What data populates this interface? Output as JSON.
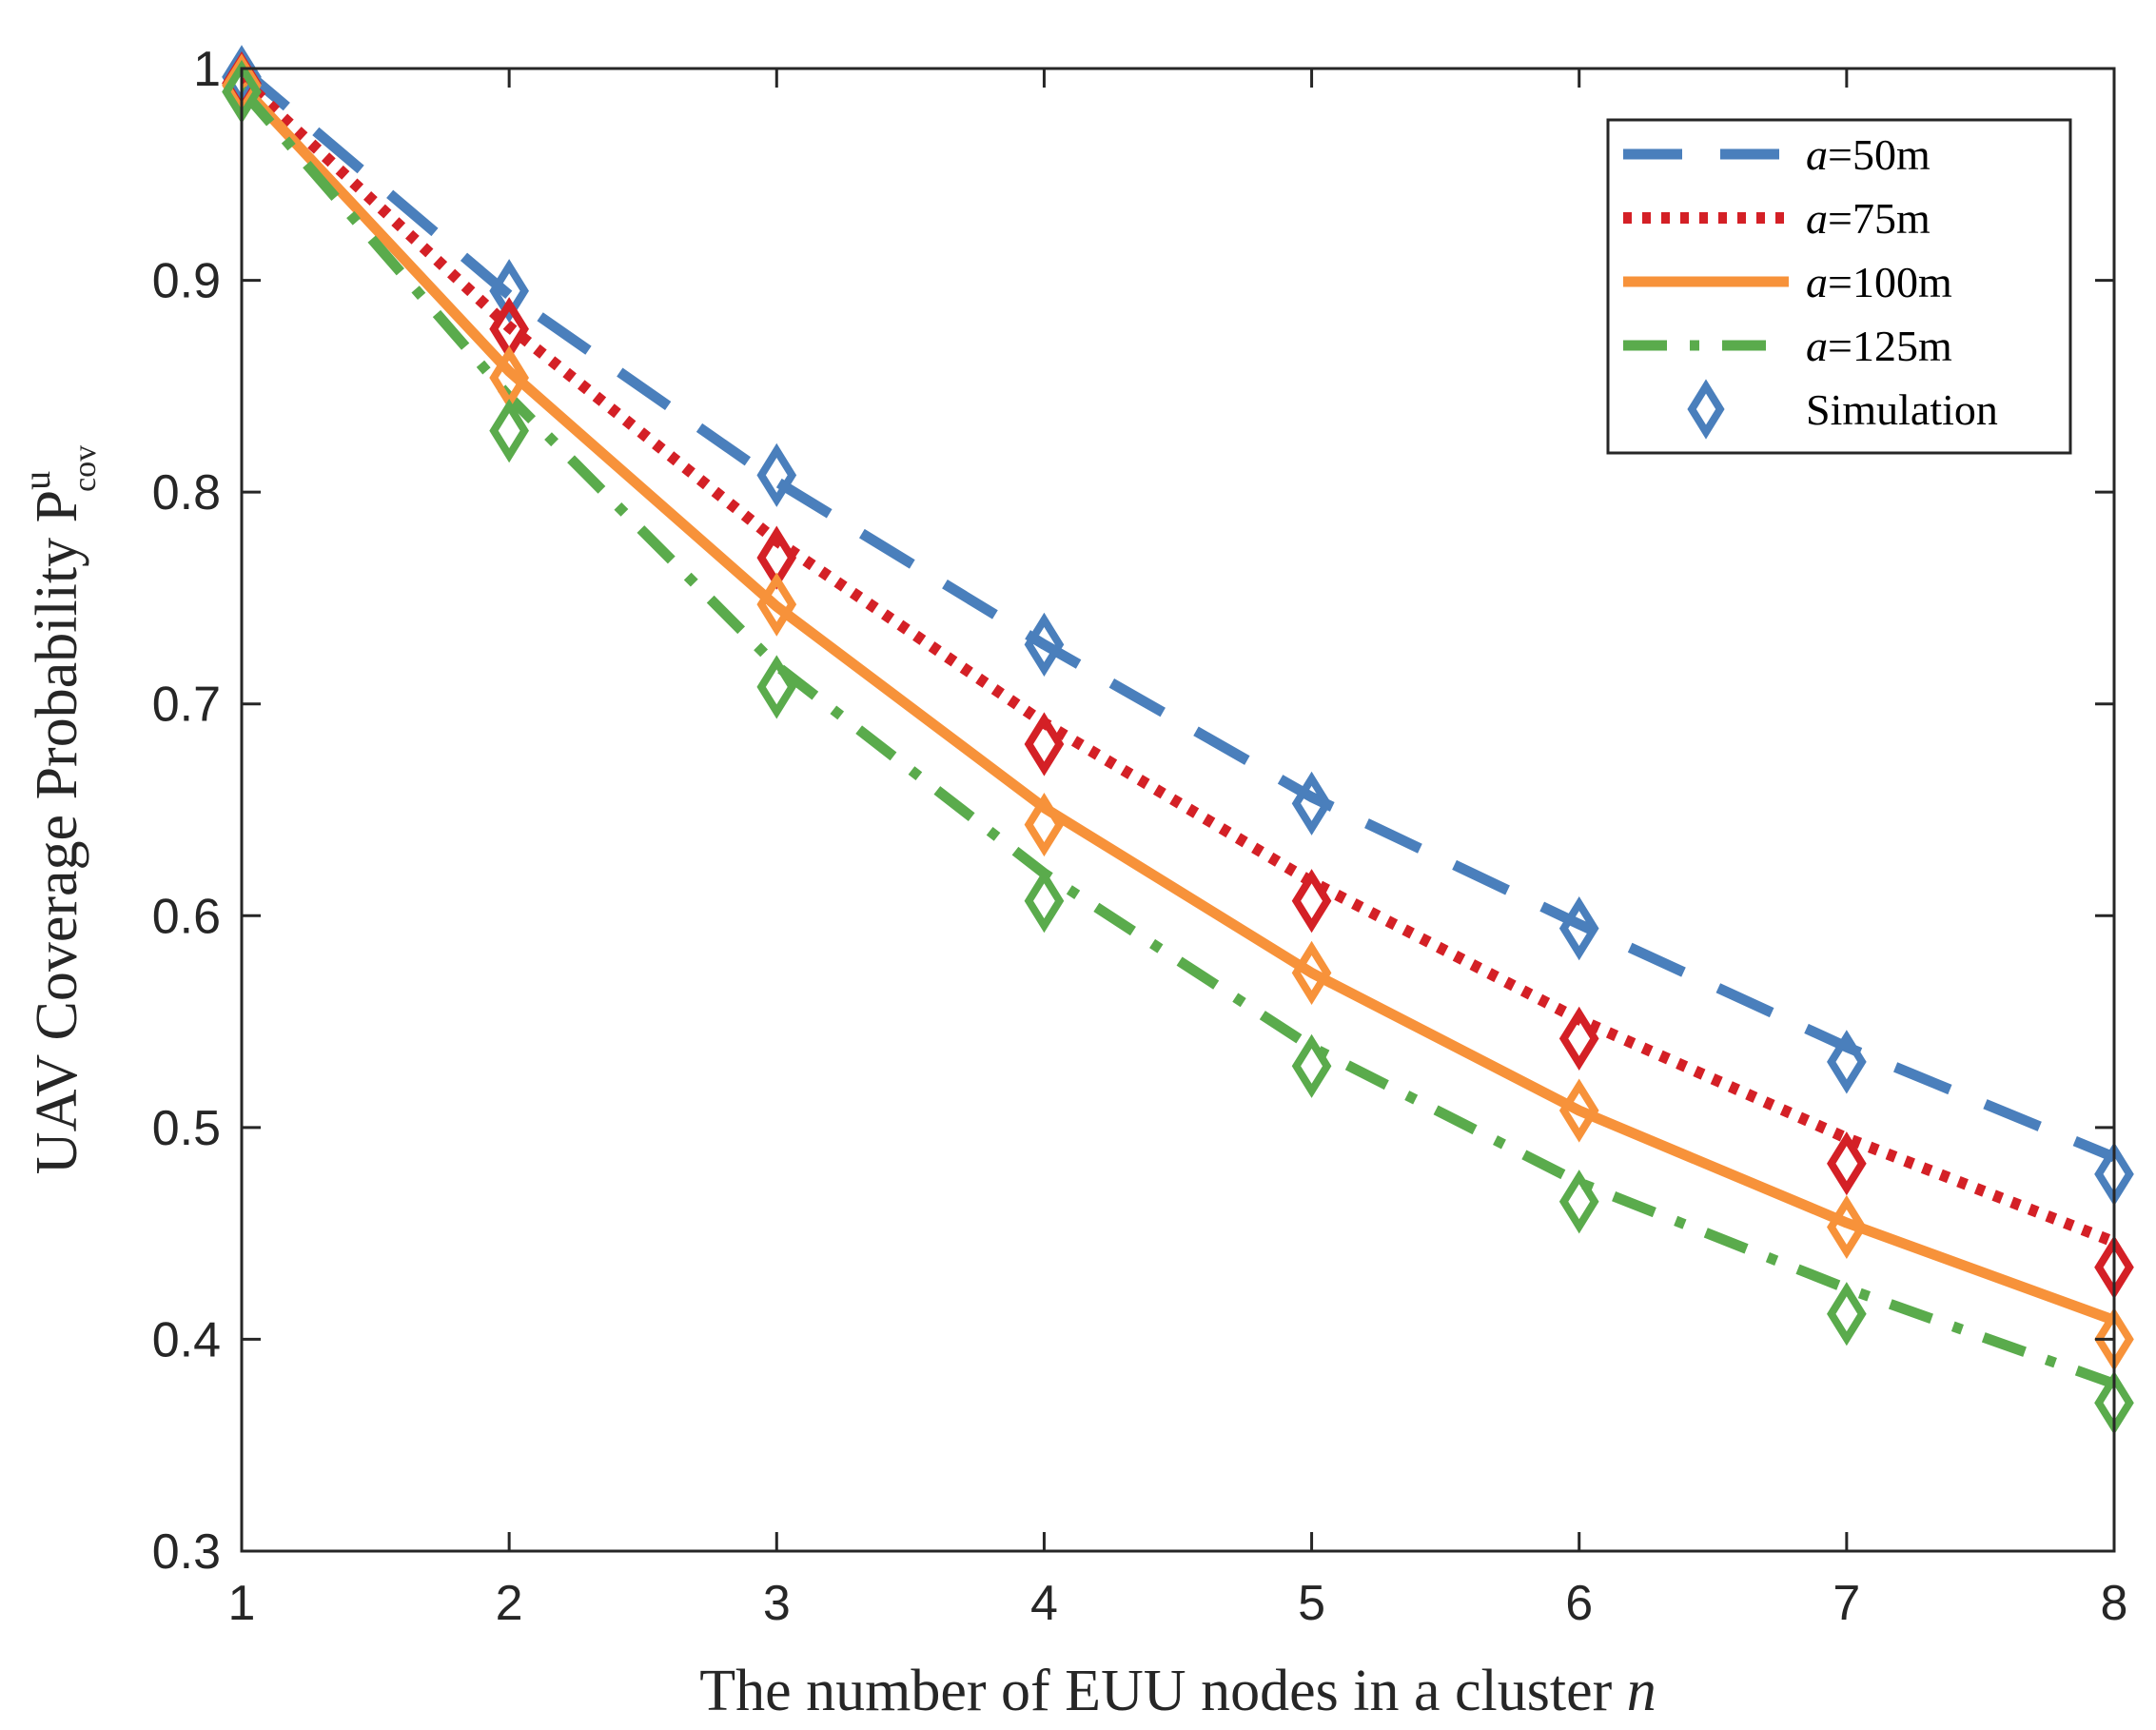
{
  "chart_data": {
    "type": "line",
    "title": "",
    "xlabel": {
      "text": "The number of EUU nodes in a cluster ",
      "variable": "n"
    },
    "ylabel": {
      "text": "UAV Coverage Probability P",
      "superscript": "u",
      "subscript": "cov"
    },
    "xlim": [
      1,
      8
    ],
    "ylim": [
      0.3,
      1
    ],
    "xticks": [
      1,
      2,
      3,
      4,
      5,
      6,
      7,
      8
    ],
    "xtick_labels": [
      "1",
      "2",
      "3",
      "4",
      "5",
      "6",
      "7",
      "8"
    ],
    "yticks": [
      0.3,
      0.4,
      0.5,
      0.6,
      0.7,
      0.8,
      0.9,
      1
    ],
    "ytick_labels": [
      "0.3",
      "0.4",
      "0.5",
      "0.6",
      "0.7",
      "0.8",
      "0.9",
      "1"
    ],
    "grid": false,
    "legend_position": "top-right",
    "x": [
      1,
      2,
      3,
      4,
      5,
      6,
      7,
      8
    ],
    "series": [
      {
        "name": "a=50m",
        "var": "a",
        "value_label": "=50m",
        "color": "#4a7fbc",
        "style": "dashed",
        "values": [
          1.0,
          0.893,
          0.805,
          0.728,
          0.656,
          0.596,
          0.538,
          0.486
        ],
        "simulation": [
          0.996,
          0.895,
          0.808,
          0.728,
          0.653,
          0.594,
          0.531,
          0.478
        ]
      },
      {
        "name": "a=75m",
        "var": "a",
        "value_label": "=75m",
        "color": "#d42026",
        "style": "dotted",
        "values": [
          0.995,
          0.878,
          0.777,
          0.691,
          0.616,
          0.551,
          0.495,
          0.446
        ],
        "simulation": [
          0.993,
          0.877,
          0.769,
          0.681,
          0.607,
          0.542,
          0.483,
          0.434
        ]
      },
      {
        "name": "a=100m",
        "var": "a",
        "value_label": "=100m",
        "color": "#f7923a",
        "style": "solid",
        "values": [
          0.992,
          0.857,
          0.746,
          0.651,
          0.573,
          0.508,
          0.455,
          0.409
        ],
        "simulation": [
          0.992,
          0.854,
          0.747,
          0.643,
          0.573,
          0.508,
          0.453,
          0.4
        ]
      },
      {
        "name": "a=125m",
        "var": "a",
        "value_label": "=125m",
        "color": "#5aab4c",
        "style": "dashdot",
        "values": [
          0.99,
          0.845,
          0.718,
          0.62,
          0.538,
          0.474,
          0.424,
          0.379
        ],
        "simulation": [
          0.989,
          0.829,
          0.708,
          0.607,
          0.529,
          0.465,
          0.412,
          0.37
        ]
      }
    ],
    "simulation_legend": {
      "label": "Simulation",
      "marker": "diamond-icon",
      "color": "#4a7fbc"
    }
  }
}
